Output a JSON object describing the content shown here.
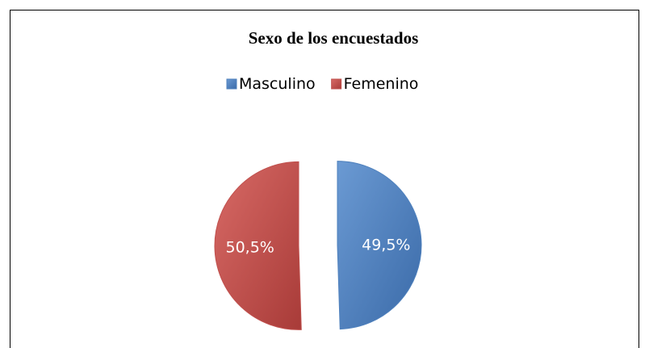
{
  "chart_data": {
    "type": "pie",
    "title": "Sexo de los encuestados",
    "categories": [
      "Masculino",
      "Femenino"
    ],
    "values": [
      49.5,
      50.5
    ],
    "value_labels": [
      "49,5%",
      "50,5%"
    ],
    "colors": [
      "#4f81bd",
      "#c0504d"
    ],
    "legend": "top"
  }
}
